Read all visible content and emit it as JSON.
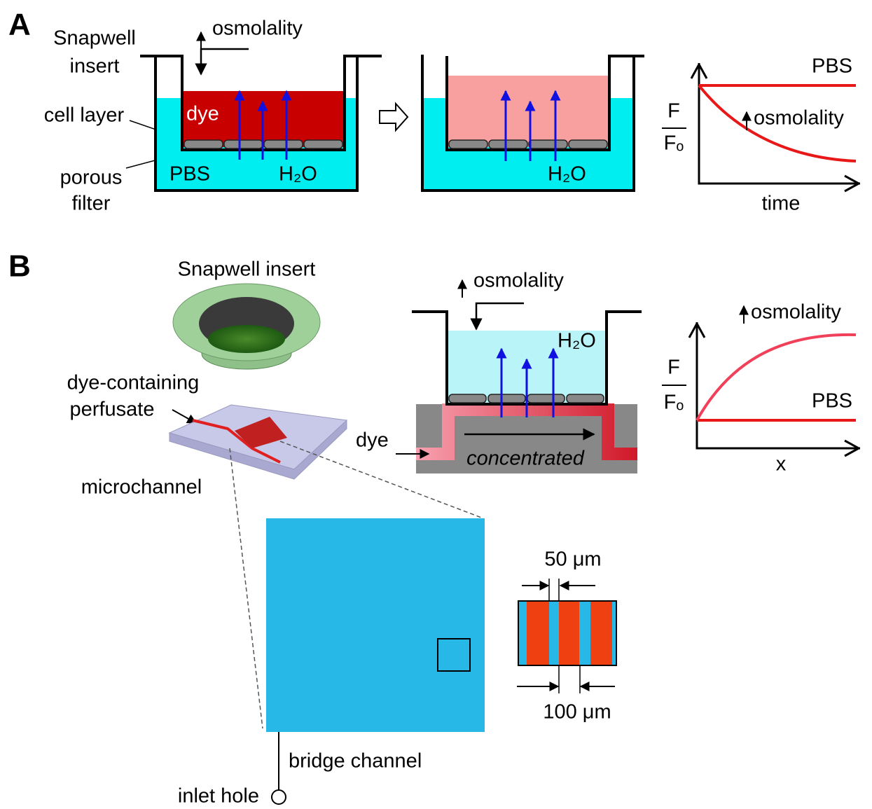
{
  "panel_a": {
    "label": "A",
    "insert_label": [
      "Snapwell",
      "insert"
    ],
    "osmolality": "osmolality",
    "cell_layer": "cell layer",
    "porous_filter": [
      "porous",
      "filter"
    ],
    "dye": "dye",
    "pbs": "PBS",
    "water": "H₂O",
    "water_after": "H₂O",
    "graph": {
      "y_label_top": "F",
      "y_label_bottom": "Fₒ",
      "x_label": "time",
      "pbs": "PBS",
      "osmolality": "osmolality"
    }
  },
  "panel_b": {
    "label": "B",
    "insert_label": "Snapwell insert",
    "perfusate_label": [
      "dye-containing",
      "perfusate"
    ],
    "microchannel": "microchannel",
    "osmolality": "osmolality",
    "water": "H₂O",
    "dye": "dye",
    "concentrated": "concentrated",
    "graph": {
      "y_label_top": "F",
      "y_label_bottom": "Fₒ",
      "x_label": "x",
      "pbs": "PBS",
      "osmolality": "osmolality"
    },
    "channel_width": "50 μm",
    "channel_pitch": "100 μm",
    "bridge_channel": "bridge channel",
    "inlet_hole": "inlet hole"
  }
}
